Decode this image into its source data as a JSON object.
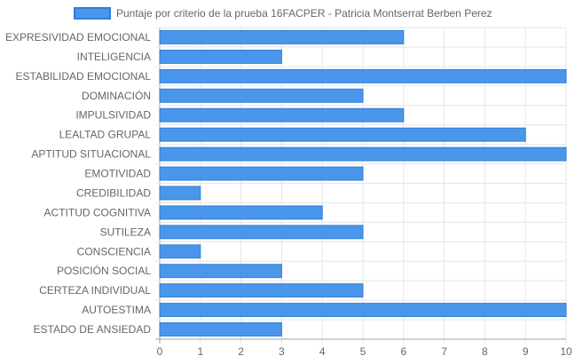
{
  "chart_data": {
    "type": "bar",
    "orientation": "horizontal",
    "categories": [
      "EXPRESIVIDAD EMOCIONAL",
      "INTELIGENCIA",
      "ESTABILIDAD EMOCIONAL",
      "DOMINACIÓN",
      "IMPULSIVIDAD",
      "LEALTAD GRUPAL",
      "APTITUD SITUACIONAL",
      "EMOTIVIDAD",
      "CREDIBILIDAD",
      "ACTITUD COGNITIVA",
      "SUTILEZA",
      "CONSCIENCIA",
      "POSICIÓN SOCIAL",
      "CERTEZA INDIVIDUAL",
      "AUTOESTIMA",
      "ESTADO DE ANSIEDAD"
    ],
    "series": [
      {
        "name": "Puntaje por criterio de la prueba 16FACPER - Patricia Montserrat Berben Perez",
        "values": [
          6,
          3,
          10,
          5,
          6,
          9,
          10,
          5,
          1,
          4,
          5,
          1,
          3,
          5,
          10,
          3
        ]
      }
    ],
    "xlim": [
      0,
      10
    ],
    "xticks": [
      "0",
      "1",
      "2",
      "3",
      "4",
      "5",
      "6",
      "7",
      "8",
      "9",
      "10"
    ],
    "grid": true,
    "legend_position": "top",
    "colors": {
      "bar_fill": "#4a96ea",
      "bar_border": "#2f7fd8",
      "grid": "#e6e6e6",
      "axis": "#a0a0a0",
      "text": "#666666"
    }
  }
}
